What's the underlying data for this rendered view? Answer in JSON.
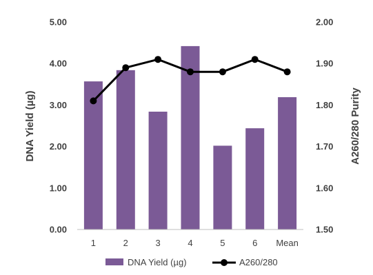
{
  "chart_data": {
    "type": "bar",
    "categories": [
      "1",
      "2",
      "3",
      "4",
      "5",
      "6",
      "Mean"
    ],
    "series": [
      {
        "name": "DNA Yield (µg)",
        "type": "bar",
        "axis": "left",
        "color": "#7b5a96",
        "values": [
          3.57,
          3.84,
          2.84,
          4.42,
          2.02,
          2.44,
          3.19
        ]
      },
      {
        "name": "A260/280",
        "type": "line",
        "axis": "right",
        "color": "#000000",
        "values": [
          1.81,
          1.89,
          1.91,
          1.88,
          1.88,
          1.91,
          1.88
        ]
      }
    ],
    "ylabel": "DNA Yield (µg)",
    "y2label": "A260/280 Purity",
    "ylim": [
      0,
      5
    ],
    "y2lim": [
      1.5,
      2.0
    ],
    "yticks": [
      "0.00",
      "1.00",
      "2.00",
      "3.00",
      "4.00",
      "5.00"
    ],
    "y2ticks": [
      "1.50",
      "1.60",
      "1.70",
      "1.80",
      "1.90",
      "2.00"
    ],
    "grid": false,
    "legend": "bottom"
  }
}
